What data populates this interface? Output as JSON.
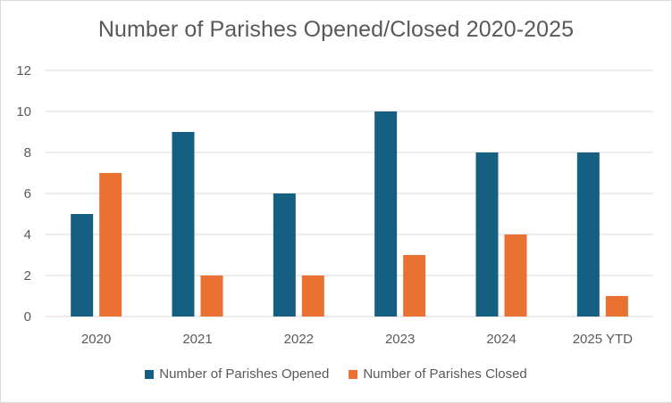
{
  "chart_data": {
    "type": "bar",
    "title": "Number of Parishes Opened/Closed 2020-2025",
    "categories": [
      "2020",
      "2021",
      "2022",
      "2023",
      "2024",
      "2025 YTD"
    ],
    "series": [
      {
        "name": "Number of Parishes Opened",
        "color": "#156082",
        "values": [
          5,
          9,
          6,
          10,
          8,
          8
        ]
      },
      {
        "name": "Number of Parishes Closed",
        "color": "#E97132",
        "values": [
          7,
          2,
          2,
          3,
          4,
          1
        ]
      }
    ],
    "ylim": [
      0,
      12
    ],
    "yticks": [
      0,
      2,
      4,
      6,
      8,
      10,
      12
    ],
    "grid": true,
    "legend_position": "bottom",
    "xlabel": "",
    "ylabel": ""
  }
}
